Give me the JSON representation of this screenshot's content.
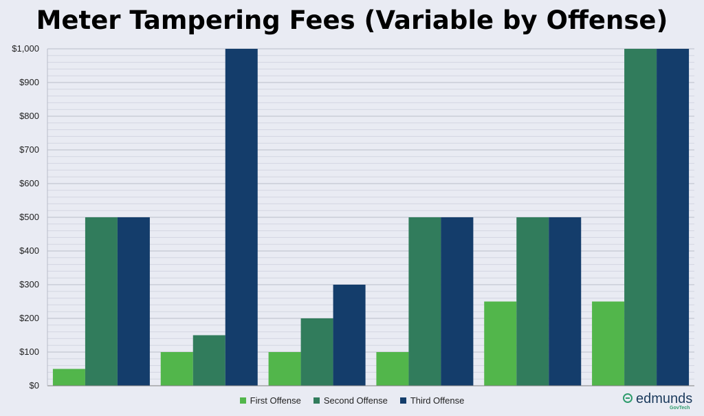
{
  "chart_data": {
    "type": "bar",
    "title": "Meter Tampering Fees (Variable by Offense)",
    "xlabel": "",
    "ylabel": "",
    "ylim": [
      0,
      1000
    ],
    "ytick_labels": [
      "$0",
      "$100",
      "$200",
      "$300",
      "$400",
      "$500",
      "$600",
      "$700",
      "$800",
      "$900",
      "$1,000"
    ],
    "ytick_values": [
      0,
      100,
      200,
      300,
      400,
      500,
      600,
      700,
      800,
      900,
      1000
    ],
    "categories": [
      "",
      "",
      "",
      "",
      "",
      ""
    ],
    "series": [
      {
        "name": "First Offense",
        "color": "#52b64b",
        "values": [
          50,
          100,
          100,
          100,
          250,
          250
        ]
      },
      {
        "name": "Second Offense",
        "color": "#317c5c",
        "values": [
          500,
          150,
          200,
          500,
          500,
          1000
        ]
      },
      {
        "name": "Third Offense",
        "color": "#143d6b",
        "values": [
          500,
          1000,
          300,
          500,
          500,
          1000
        ]
      }
    ],
    "grid": true,
    "legend_position": "bottom"
  },
  "logo": {
    "name": "edmunds",
    "sub": "GovTech"
  }
}
